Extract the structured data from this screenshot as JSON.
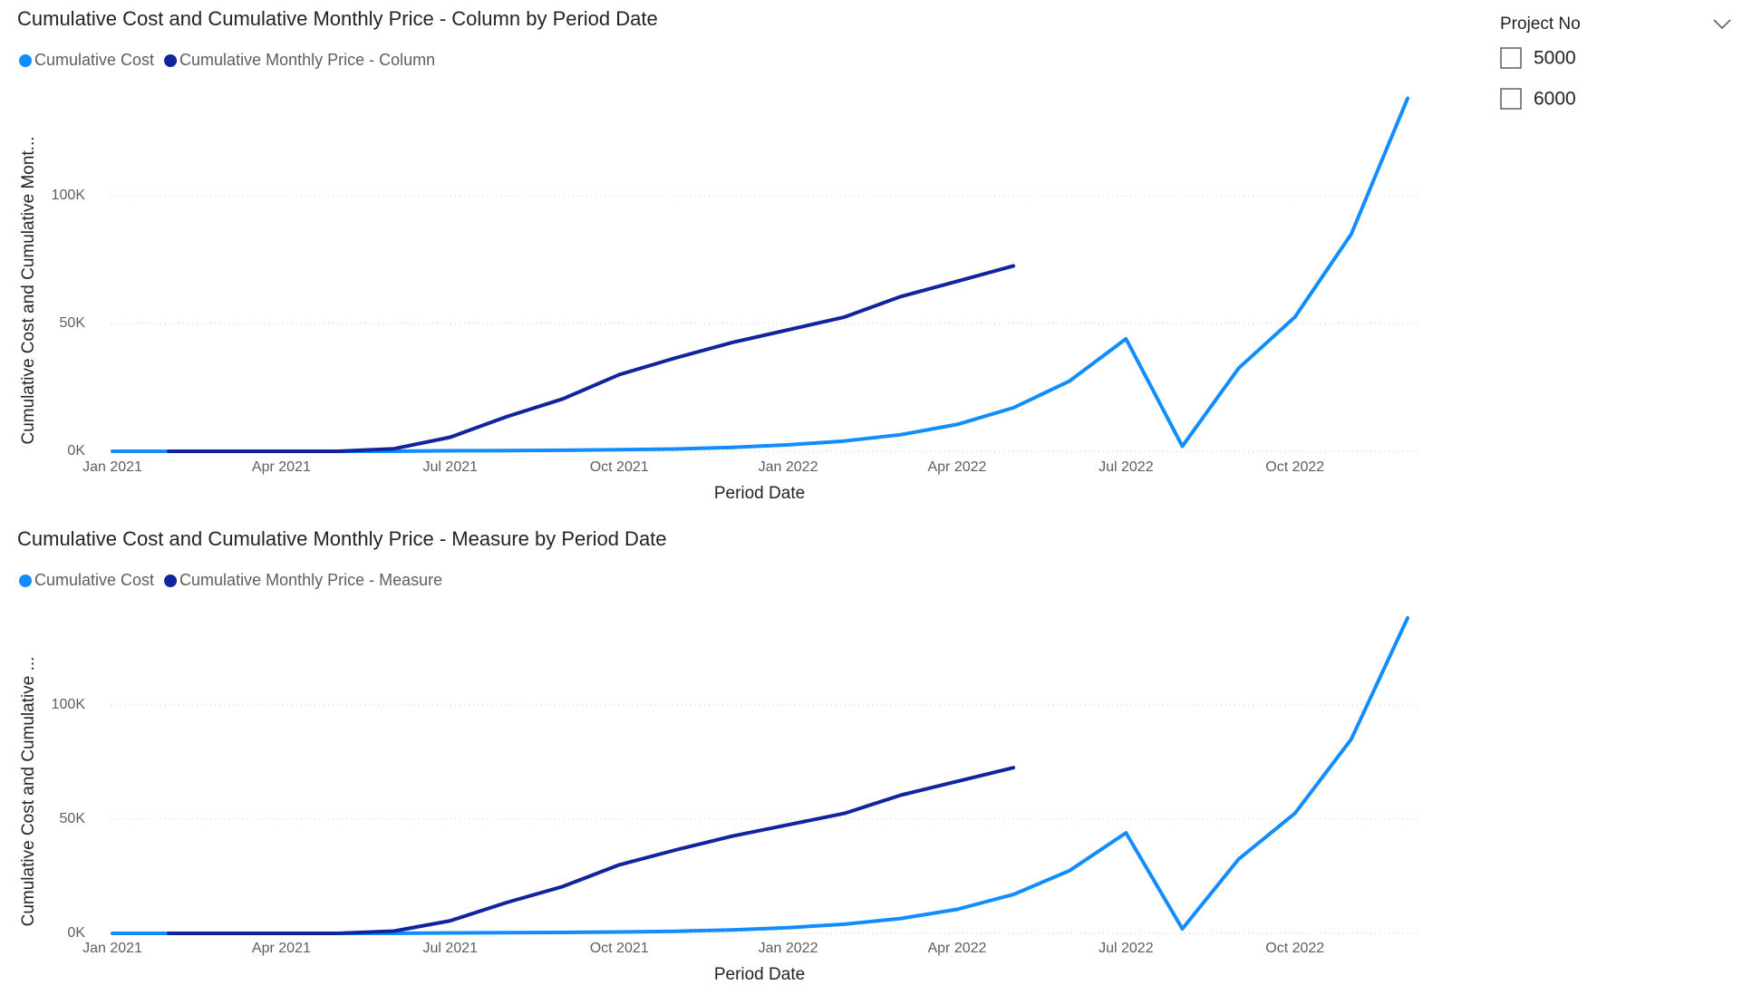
{
  "chart_data": [
    {
      "type": "line",
      "title": "Cumulative Cost and Cumulative Monthly Price - Column by Period Date",
      "x_label": "Period Date",
      "y_label": "Cumulative Cost and Cumulative Mont...",
      "categories": [
        "Jan 2021",
        null,
        null,
        "Apr 2021",
        null,
        null,
        "Jul 2021",
        null,
        null,
        "Oct 2021",
        null,
        null,
        "Jan 2022",
        null,
        null,
        "Apr 2022",
        null,
        null,
        "Jul 2022",
        null,
        null,
        "Oct 2022",
        null,
        null
      ],
      "series": [
        {
          "name": "Cumulative Cost",
          "color": "#118DFF",
          "values": [
            0,
            0,
            0,
            0,
            0,
            0,
            200,
            300,
            400,
            600,
            900,
            1500,
            2500,
            4000,
            6500,
            10500,
            17000,
            27500,
            44000,
            2000,
            32500,
            52500,
            85000,
            138000
          ]
        },
        {
          "name": "Cumulative Monthly Price - Column",
          "color": "#12239E",
          "values": [
            null,
            0,
            0,
            0,
            0,
            1000,
            5500,
            13500,
            20500,
            30000,
            36500,
            42500,
            47500,
            52500,
            60500,
            66500,
            72500,
            null,
            null,
            null,
            null,
            null,
            null,
            null
          ]
        }
      ],
      "ylim": [
        0,
        140000
      ],
      "yticks": [
        {
          "value": 0,
          "label": "0K"
        },
        {
          "value": 50000,
          "label": "50K"
        },
        {
          "value": 100000,
          "label": "100K"
        }
      ],
      "grid": true
    },
    {
      "type": "line",
      "title": "Cumulative Cost and Cumulative Monthly Price - Measure by Period Date",
      "x_label": "Period Date",
      "y_label": "Cumulative Cost and Cumulative ...",
      "categories": [
        "Jan 2021",
        null,
        null,
        "Apr 2021",
        null,
        null,
        "Jul 2021",
        null,
        null,
        "Oct 2021",
        null,
        null,
        "Jan 2022",
        null,
        null,
        "Apr 2022",
        null,
        null,
        "Jul 2022",
        null,
        null,
        "Oct 2022",
        null,
        null
      ],
      "series": [
        {
          "name": "Cumulative Cost",
          "color": "#118DFF",
          "values": [
            0,
            0,
            0,
            0,
            0,
            0,
            200,
            300,
            400,
            600,
            900,
            1500,
            2500,
            4000,
            6500,
            10500,
            17000,
            27500,
            44000,
            2000,
            32500,
            52500,
            85000,
            138000
          ]
        },
        {
          "name": "Cumulative Monthly Price - Measure",
          "color": "#12239E",
          "values": [
            null,
            0,
            0,
            0,
            0,
            1000,
            5500,
            13500,
            20500,
            30000,
            36500,
            42500,
            47500,
            52500,
            60500,
            66500,
            72500,
            null,
            null,
            null,
            null,
            null,
            null,
            null
          ]
        }
      ],
      "ylim": [
        0,
        140000
      ],
      "yticks": [
        {
          "value": 0,
          "label": "0K"
        },
        {
          "value": 50000,
          "label": "50K"
        },
        {
          "value": 100000,
          "label": "100K"
        }
      ],
      "grid": true
    }
  ],
  "slicer": {
    "title": "Project No",
    "items": [
      "5000",
      "6000"
    ]
  }
}
